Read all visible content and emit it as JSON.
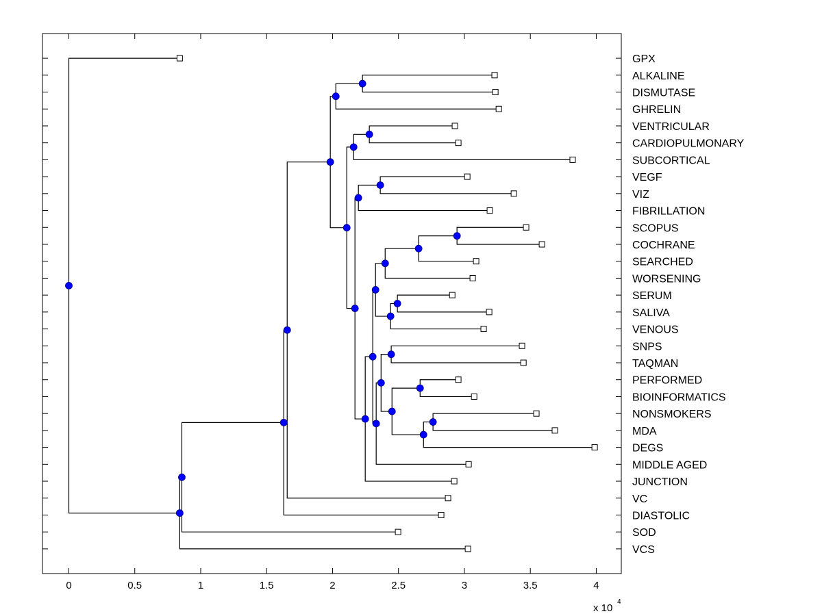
{
  "chart_data": {
    "type": "dendrogram",
    "orientation": "right",
    "title": "",
    "xlabel": "",
    "ylabel": "",
    "x_multiplier_label": "x 10",
    "x_multiplier_exponent": "4",
    "xlim": [
      -0.2,
      4.19
    ],
    "ylim": [
      -0.46,
      31.46
    ],
    "xticks": [
      0,
      0.5,
      1,
      1.5,
      2,
      2.5,
      3,
      3.5,
      4
    ],
    "xtick_labels": [
      "0",
      "0.5",
      "1",
      "1.5",
      "2",
      "2.5",
      "3",
      "3.5",
      "4"
    ],
    "grid": false,
    "node_color": "#0000ff",
    "line_color": "#000000",
    "leaves": [
      {
        "label": "GPX",
        "value": 0.841
      },
      {
        "label": "ALKALINE",
        "value": 3.229
      },
      {
        "label": "DISMUTASE",
        "value": 3.235
      },
      {
        "label": "GHRELIN",
        "value": 3.261
      },
      {
        "label": "VENTRICULAR",
        "value": 2.928
      },
      {
        "label": "CARDIOPULMONARY",
        "value": 2.954
      },
      {
        "label": "SUBCORTICAL",
        "value": 3.821
      },
      {
        "label": "VEGF",
        "value": 3.022
      },
      {
        "label": "VIZ",
        "value": 3.375
      },
      {
        "label": "FIBRILLATION",
        "value": 3.193
      },
      {
        "label": "SCOPUS",
        "value": 3.468
      },
      {
        "label": "COCHRANE",
        "value": 3.588
      },
      {
        "label": "SEARCHED",
        "value": 3.089
      },
      {
        "label": "WORSENING",
        "value": 3.063
      },
      {
        "label": "SERUM",
        "value": 2.908
      },
      {
        "label": "SALIVA",
        "value": 3.188
      },
      {
        "label": "VENOUS",
        "value": 3.146
      },
      {
        "label": "SNPS",
        "value": 3.437
      },
      {
        "label": "TAQMAN",
        "value": 3.448
      },
      {
        "label": "PERFORMED",
        "value": 2.954
      },
      {
        "label": "BIOINFORMATICS",
        "value": 3.074
      },
      {
        "label": "NONSMOKERS",
        "value": 3.546
      },
      {
        "label": "MDA",
        "value": 3.686
      },
      {
        "label": "DEGS",
        "value": 3.988
      },
      {
        "label": "MIDDLE AGED",
        "value": 3.032
      },
      {
        "label": "JUNCTION",
        "value": 2.923
      },
      {
        "label": "VC",
        "value": 2.876
      },
      {
        "label": "DIASTOLIC",
        "value": 2.824
      },
      {
        "label": "SOD",
        "value": 2.497
      },
      {
        "label": "VCS",
        "value": 3.027
      }
    ],
    "nodes": [
      {
        "id": "n1",
        "value": 2.227,
        "children": [
          "L1",
          "L2"
        ]
      },
      {
        "id": "n2",
        "value": 2.025,
        "children": [
          "n1",
          "L3"
        ]
      },
      {
        "id": "n3",
        "value": 2.279,
        "children": [
          "L4",
          "L5"
        ]
      },
      {
        "id": "n4",
        "value": 2.16,
        "children": [
          "n3",
          "L6"
        ]
      },
      {
        "id": "n5",
        "value": 2.362,
        "children": [
          "L7",
          "L8"
        ]
      },
      {
        "id": "n6",
        "value": 2.196,
        "children": [
          "n5",
          "L9"
        ]
      },
      {
        "id": "n7",
        "value": 2.944,
        "children": [
          "L10",
          "L11"
        ]
      },
      {
        "id": "n8",
        "value": 2.653,
        "children": [
          "n7",
          "L12"
        ]
      },
      {
        "id": "n9",
        "value": 2.399,
        "children": [
          "n8",
          "L13"
        ]
      },
      {
        "id": "n10",
        "value": 2.492,
        "children": [
          "L14",
          "L15"
        ]
      },
      {
        "id": "n11",
        "value": 2.44,
        "children": [
          "n10",
          "L16"
        ]
      },
      {
        "id": "n12",
        "value": 2.326,
        "children": [
          "n9",
          "n11"
        ]
      },
      {
        "id": "n13",
        "value": 2.445,
        "children": [
          "L17",
          "L18"
        ]
      },
      {
        "id": "n14",
        "value": 2.664,
        "children": [
          "L19",
          "L20"
        ]
      },
      {
        "id": "n15",
        "value": 2.762,
        "children": [
          "L21",
          "L22"
        ]
      },
      {
        "id": "n16",
        "value": 2.69,
        "children": [
          "n15",
          "L23"
        ]
      },
      {
        "id": "n17",
        "value": 2.451,
        "children": [
          "n14",
          "n16"
        ]
      },
      {
        "id": "n18",
        "value": 2.368,
        "children": [
          "n13",
          "n17"
        ]
      },
      {
        "id": "n19",
        "value": 2.331,
        "children": [
          "n18",
          "L24"
        ]
      },
      {
        "id": "n20",
        "value": 2.305,
        "children": [
          "n12",
          "n19"
        ]
      },
      {
        "id": "n21",
        "value": 2.248,
        "children": [
          "n20",
          "L25"
        ]
      },
      {
        "id": "n22",
        "value": 2.17,
        "children": [
          "n6",
          "n21"
        ]
      },
      {
        "id": "n23",
        "value": 2.108,
        "children": [
          "n4",
          "n22"
        ]
      },
      {
        "id": "n24",
        "value": 1.983,
        "children": [
          "n2",
          "n23"
        ]
      },
      {
        "id": "n25",
        "value": 1.656,
        "children": [
          "n24",
          "L26"
        ]
      },
      {
        "id": "n26",
        "value": 1.63,
        "children": [
          "n25",
          "L27"
        ]
      },
      {
        "id": "n27",
        "value": 0.857,
        "children": [
          "n26",
          "L28"
        ]
      },
      {
        "id": "n28",
        "value": 0.841,
        "children": [
          "n27",
          "L29"
        ]
      },
      {
        "id": "root",
        "value": 0.0,
        "children": [
          "L0",
          "n28"
        ]
      }
    ]
  }
}
